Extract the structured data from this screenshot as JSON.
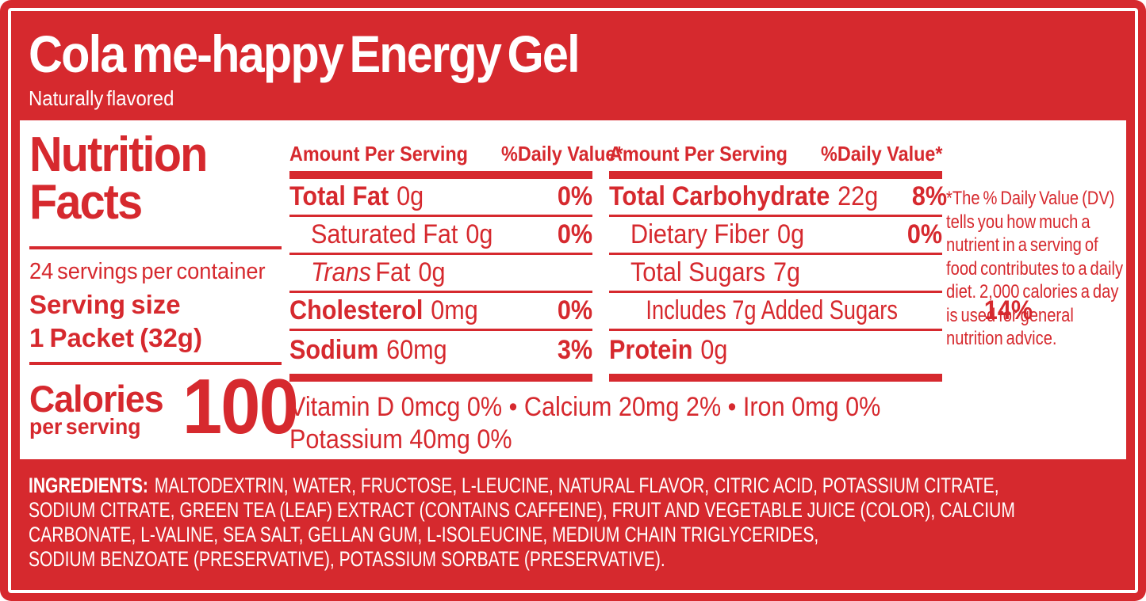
{
  "colors": {
    "red": "#d6292e",
    "white": "#ffffff"
  },
  "header": {
    "title": "Cola me-happy Energy Gel",
    "subtitle": "Naturally flavored"
  },
  "facts": {
    "title_line1": "Nutrition",
    "title_line2": "Facts",
    "servings_per_container": "24 servings per container",
    "serving_size_label": "Serving size",
    "serving_size_value": "1 Packet (32g)",
    "calories_label": "Calories",
    "calories_sublabel": "per serving",
    "calories_value": "100",
    "amount_header": "Amount Per Serving",
    "dv_header": "%Daily Value*",
    "left_rows": [
      {
        "name": "Total Fat",
        "amount": "0g",
        "dv": "0%"
      },
      {
        "name": "Saturated Fat",
        "amount": "0g",
        "dv": "0%"
      },
      {
        "name_italic": "Trans",
        "name": "Fat",
        "amount": "0g",
        "dv": ""
      },
      {
        "name": "Cholesterol",
        "amount": "0mg",
        "dv": "0%"
      },
      {
        "name": "Sodium",
        "amount": "60mg",
        "dv": "3%"
      }
    ],
    "right_rows": [
      {
        "name": "Total Carbohydrate",
        "amount": "22g",
        "dv": "8%"
      },
      {
        "name": "Dietary Fiber",
        "amount": "0g",
        "dv": "0%"
      },
      {
        "name": "Total Sugars",
        "amount": "7g",
        "dv": ""
      },
      {
        "name": "Includes 7g Added Sugars",
        "amount": "",
        "dv": "14%"
      },
      {
        "name": "Protein",
        "amount": "0g",
        "dv": ""
      }
    ],
    "micros_line1": "Vitamin D  0mcg  0%  •  Calcium  20mg 2%  •  Iron  0mg  0%",
    "micros_line2": "Potassium  40mg  0%",
    "footnote": "*The % Daily Value (DV) tells you how much a nutrient in a serving of food contributes to a daily diet. 2,000 calories a day is used for general nutrition advice."
  },
  "ingredients": {
    "label": "INGREDIENTS:",
    "lines": [
      "MALTODEXTRIN, WATER, FRUCTOSE, L-LEUCINE, NATURAL FLAVOR, CITRIC ACID, POTASSIUM CITRATE,",
      "SODIUM CITRATE, GREEN TEA (LEAF) EXTRACT (CONTAINS CAFFEINE), FRUIT AND VEGETABLE JUICE (COLOR), CALCIUM",
      "CARBONATE, L-VALINE, SEA SALT, GELLAN GUM, L-ISOLEUCINE, MEDIUM CHAIN TRIGLYCERIDES,",
      "SODIUM BENZOATE (PRESERVATIVE), POTASSIUM SORBATE (PRESERVATIVE)."
    ]
  }
}
